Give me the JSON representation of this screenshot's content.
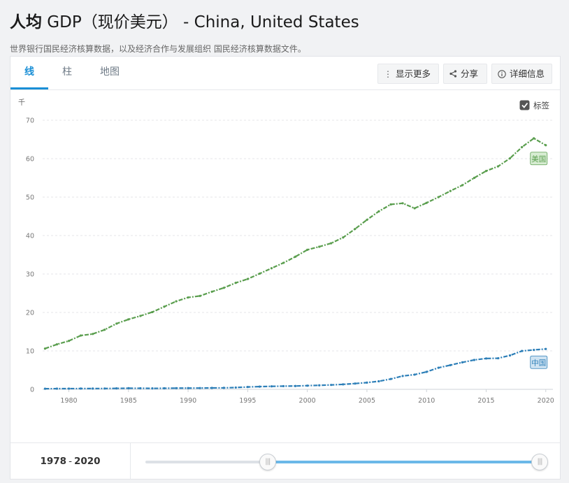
{
  "header": {
    "title_bold": "人均",
    "title_rest": " GDP（现价美元） - China, United States",
    "subtitle": "世界银行国民经济核算数据，以及经济合作与发展组织 国民经济核算数据文件。"
  },
  "tabs": [
    {
      "label": "线",
      "active": true
    },
    {
      "label": "柱",
      "active": false
    },
    {
      "label": "地图",
      "active": false
    }
  ],
  "toolbar": {
    "more_label": "显示更多",
    "share_label": "分享",
    "details_label": "详细信息"
  },
  "range": {
    "start": "1978",
    "sep": "-",
    "end": "2020",
    "handle_glyph": "|||",
    "selected_from_fraction": 0.31,
    "selected_to_fraction": 1.0
  },
  "chart_data": {
    "type": "line",
    "unit_label": "千",
    "labels_checkbox": {
      "label": "标签",
      "checked": true
    },
    "x": [
      1978,
      1979,
      1980,
      1981,
      1982,
      1983,
      1984,
      1985,
      1986,
      1987,
      1988,
      1989,
      1990,
      1991,
      1992,
      1993,
      1994,
      1995,
      1996,
      1997,
      1998,
      1999,
      2000,
      2001,
      2002,
      2003,
      2004,
      2005,
      2006,
      2007,
      2008,
      2009,
      2010,
      2011,
      2012,
      2013,
      2014,
      2015,
      2016,
      2017,
      2018,
      2019,
      2020
    ],
    "xlim": [
      1977.8,
      2020.6
    ],
    "xticks": [
      1980,
      1985,
      1990,
      1995,
      2000,
      2005,
      2010,
      2015,
      2020
    ],
    "ylim": [
      0,
      70
    ],
    "yticks": [
      0,
      10,
      20,
      30,
      40,
      50,
      60,
      70
    ],
    "grid": true,
    "series": [
      {
        "name": "United States",
        "label": "美国",
        "color": "#5a9e4e",
        "label_bg": "#d7ecd2",
        "values": [
          10.6,
          11.7,
          12.6,
          14.0,
          14.4,
          15.5,
          17.1,
          18.2,
          19.1,
          20.1,
          21.5,
          22.9,
          23.9,
          24.3,
          25.4,
          26.4,
          27.7,
          28.7,
          30.1,
          31.5,
          32.9,
          34.5,
          36.3,
          37.1,
          38.0,
          39.5,
          41.7,
          44.1,
          46.3,
          48.1,
          48.4,
          47.1,
          48.5,
          50.0,
          51.6,
          53.1,
          55.0,
          56.8,
          58.0,
          60.1,
          63.0,
          65.3,
          63.5
        ]
      },
      {
        "name": "China",
        "label": "中国",
        "color": "#2d7fb8",
        "label_bg": "#cfe3f2",
        "values": [
          0.16,
          0.18,
          0.19,
          0.2,
          0.2,
          0.22,
          0.25,
          0.29,
          0.28,
          0.25,
          0.28,
          0.31,
          0.32,
          0.33,
          0.37,
          0.38,
          0.47,
          0.61,
          0.71,
          0.78,
          0.83,
          0.87,
          0.96,
          1.05,
          1.15,
          1.29,
          1.51,
          1.75,
          2.1,
          2.69,
          3.47,
          3.83,
          4.55,
          5.61,
          6.3,
          7.02,
          7.64,
          8.03,
          8.08,
          8.82,
          9.98,
          10.26,
          10.5
        ]
      }
    ]
  }
}
